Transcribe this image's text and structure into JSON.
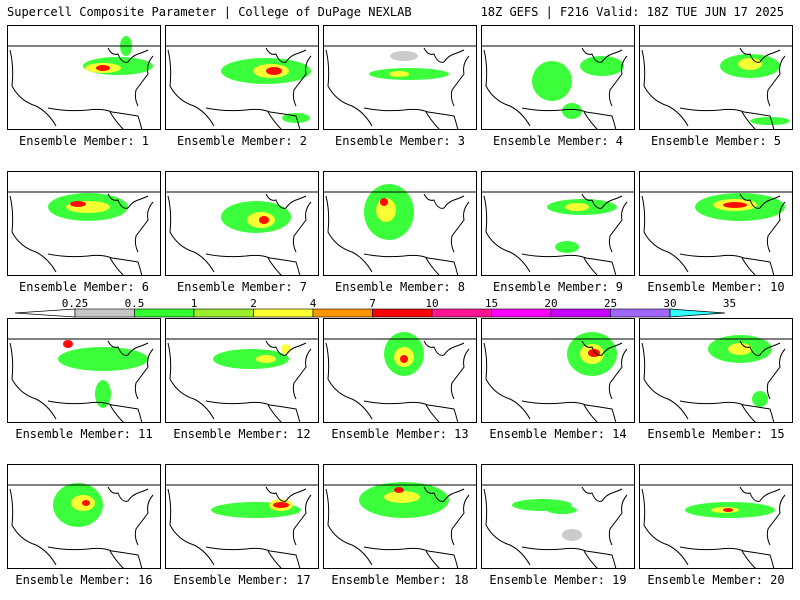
{
  "header": {
    "left": "Supercell Composite Parameter | College of DuPage NEXLAB",
    "right": "18Z GEFS | F216 Valid: 18Z TUE JUN 17 2025"
  },
  "members": [
    "Ensemble Member: 1",
    "Ensemble Member: 2",
    "Ensemble Member: 3",
    "Ensemble Member: 4",
    "Ensemble Member: 5",
    "Ensemble Member: 6",
    "Ensemble Member: 7",
    "Ensemble Member: 8",
    "Ensemble Member: 9",
    "Ensemble Member: 10",
    "Ensemble Member: 11",
    "Ensemble Member: 12",
    "Ensemble Member: 13",
    "Ensemble Member: 14",
    "Ensemble Member: 15",
    "Ensemble Member: 16",
    "Ensemble Member: 17",
    "Ensemble Member: 18",
    "Ensemble Member: 19",
    "Ensemble Member: 20"
  ],
  "legend": {
    "ticks": [
      "0.25",
      "0.5",
      "1",
      "2",
      "4",
      "7",
      "10",
      "15",
      "20",
      "25",
      "30",
      "35"
    ],
    "colors": [
      "#ffffff",
      "#c8c8c8",
      "#32ff32",
      "#9bef2a",
      "#ffff32",
      "#ff9600",
      "#ff0000",
      "#ff1493",
      "#ff00ff",
      "#c800ff",
      "#a066ff",
      "#33ffff"
    ]
  }
}
